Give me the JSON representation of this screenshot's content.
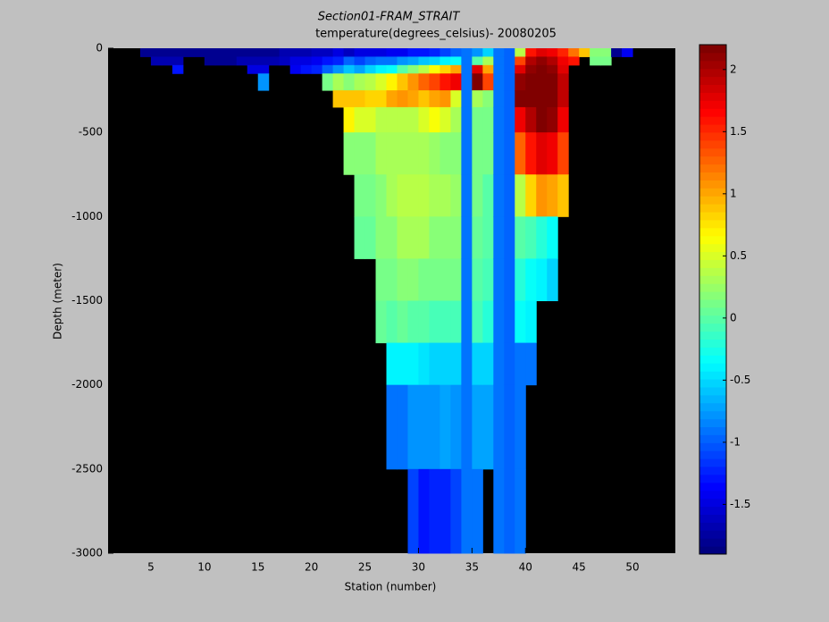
{
  "chart_data": {
    "type": "heatmap",
    "title": "Section01-FRAM_STRAIT",
    "subtitle": "temperature(degrees_celsius)- 20080205",
    "x_label": "Station (number)",
    "y_label": "Depth (meter)",
    "x": [
      5,
      6,
      7,
      8,
      9,
      10,
      11,
      12,
      13,
      14,
      15,
      16,
      17,
      18,
      19,
      20,
      21,
      22,
      23,
      24,
      25,
      26,
      27,
      28,
      29,
      30,
      31,
      32,
      33,
      34,
      35,
      36,
      37,
      38,
      39,
      40,
      41,
      42,
      43,
      44,
      45,
      46,
      47,
      48,
      49,
      50
    ],
    "depth_edges": [
      0,
      -50,
      -100,
      -150,
      -250,
      -350,
      -500,
      -750,
      -1000,
      -1250,
      -1500,
      -1750,
      -2000,
      -2500,
      -3000
    ],
    "values": [
      [
        -1.8,
        null,
        null,
        null,
        null,
        null,
        null,
        null,
        null,
        null,
        null,
        null,
        null,
        null
      ],
      [
        -1.8,
        -1.7,
        null,
        null,
        null,
        null,
        null,
        null,
        null,
        null,
        null,
        null,
        null,
        null
      ],
      [
        -1.8,
        -1.7,
        null,
        null,
        null,
        null,
        null,
        null,
        null,
        null,
        null,
        null,
        null,
        null
      ],
      [
        -1.8,
        -1.7,
        -1.3,
        null,
        null,
        null,
        null,
        null,
        null,
        null,
        null,
        null,
        null,
        null
      ],
      [
        -1.8,
        null,
        null,
        null,
        null,
        null,
        null,
        null,
        null,
        null,
        null,
        null,
        null,
        null
      ],
      [
        -1.8,
        null,
        null,
        null,
        null,
        null,
        null,
        null,
        null,
        null,
        null,
        null,
        null,
        null
      ],
      [
        -1.8,
        -1.8,
        null,
        null,
        null,
        null,
        null,
        null,
        null,
        null,
        null,
        null,
        null,
        null
      ],
      [
        -1.8,
        -1.8,
        null,
        null,
        null,
        null,
        null,
        null,
        null,
        null,
        null,
        null,
        null,
        null
      ],
      [
        -1.8,
        -1.8,
        null,
        null,
        null,
        null,
        null,
        null,
        null,
        null,
        null,
        null,
        null,
        null
      ],
      [
        -1.8,
        -1.7,
        null,
        null,
        null,
        null,
        null,
        null,
        null,
        null,
        null,
        null,
        null,
        null
      ],
      [
        -1.8,
        -1.7,
        -1.5,
        null,
        null,
        null,
        null,
        null,
        null,
        null,
        null,
        null,
        null,
        null
      ],
      [
        -1.8,
        -1.7,
        -1.5,
        -0.8,
        null,
        null,
        null,
        null,
        null,
        null,
        null,
        null,
        null,
        null
      ],
      [
        -1.8,
        -1.7,
        null,
        null,
        null,
        null,
        null,
        null,
        null,
        null,
        null,
        null,
        null,
        null
      ],
      [
        -1.7,
        -1.6,
        null,
        null,
        null,
        null,
        null,
        null,
        null,
        null,
        null,
        null,
        null,
        null
      ],
      [
        -1.7,
        -1.5,
        -1.4,
        null,
        null,
        null,
        null,
        null,
        null,
        null,
        null,
        null,
        null,
        null
      ],
      [
        -1.7,
        -1.5,
        -1.3,
        null,
        null,
        null,
        null,
        null,
        null,
        null,
        null,
        null,
        null,
        null
      ],
      [
        -1.6,
        -1.4,
        -1.2,
        null,
        null,
        null,
        null,
        null,
        null,
        null,
        null,
        null,
        null,
        null
      ],
      [
        -1.6,
        -1.3,
        -1.0,
        0.1,
        null,
        null,
        null,
        null,
        null,
        null,
        null,
        null,
        null,
        null
      ],
      [
        -1.5,
        -1.2,
        -0.8,
        0.3,
        0.9,
        null,
        null,
        null,
        null,
        null,
        null,
        null,
        null,
        null
      ],
      [
        -1.6,
        -1.0,
        -0.6,
        0.2,
        0.9,
        0.7,
        0.15,
        null,
        null,
        null,
        null,
        null,
        null,
        null
      ],
      [
        -1.5,
        -1.1,
        -0.7,
        0.3,
        0.9,
        0.5,
        0.15,
        0.1,
        0.05,
        null,
        null,
        null,
        null,
        null
      ],
      [
        -1.5,
        -1.0,
        -0.5,
        0.4,
        0.8,
        0.5,
        0.2,
        0.1,
        0.05,
        null,
        null,
        null,
        null,
        null
      ],
      [
        -1.5,
        -0.9,
        -0.4,
        0.5,
        0.8,
        0.4,
        0.3,
        0.2,
        0.15,
        0.1,
        0.05,
        null,
        null,
        null
      ],
      [
        -1.4,
        -0.9,
        -0.3,
        0.7,
        1.0,
        0.4,
        0.3,
        0.3,
        0.2,
        0.1,
        0.0,
        -0.4,
        -0.9,
        null
      ],
      [
        -1.4,
        -0.8,
        0.0,
        0.9,
        1.1,
        0.4,
        0.3,
        0.35,
        0.3,
        0.2,
        0.05,
        -0.4,
        -0.9,
        null
      ],
      [
        -1.3,
        -0.7,
        0.2,
        1.1,
        1.0,
        0.4,
        0.3,
        0.4,
        0.3,
        0.2,
        0.0,
        -0.4,
        -0.8,
        -1.1
      ],
      [
        -1.3,
        -0.6,
        0.4,
        1.3,
        0.9,
        0.5,
        0.3,
        0.4,
        0.3,
        0.1,
        0.0,
        -0.45,
        -0.8,
        -1.3
      ],
      [
        -1.2,
        -0.5,
        0.6,
        1.4,
        1.0,
        0.6,
        0.25,
        0.3,
        0.2,
        0.1,
        -0.05,
        -0.5,
        -0.8,
        -1.2
      ],
      [
        -1.1,
        -0.4,
        0.8,
        1.6,
        1.1,
        0.5,
        0.2,
        0.3,
        0.2,
        0.1,
        -0.1,
        -0.5,
        -0.7,
        -1.2
      ],
      [
        -1.0,
        -0.3,
        1.0,
        1.7,
        0.5,
        0.3,
        0.2,
        0.25,
        0.2,
        0.1,
        -0.1,
        -0.5,
        -0.8,
        -1.1
      ],
      [
        -0.9,
        -0.9,
        -0.9,
        -0.9,
        -0.9,
        -0.9,
        -0.9,
        -0.9,
        -0.9,
        -0.9,
        -0.9,
        -0.9,
        -0.9,
        -0.9
      ],
      [
        -0.8,
        0.0,
        1.8,
        2.2,
        0.3,
        0.1,
        0.1,
        0.1,
        0.05,
        0.0,
        -0.1,
        -0.5,
        -0.7,
        -0.9
      ],
      [
        -0.5,
        0.3,
        1.0,
        1.4,
        0.2,
        0.1,
        0.1,
        0.0,
        0.0,
        -0.05,
        -0.2,
        -0.5,
        -0.7,
        null
      ],
      [
        -0.9,
        -0.9,
        -0.9,
        -0.9,
        -0.9,
        -0.9,
        -0.9,
        -0.9,
        -0.9,
        -0.9,
        -0.9,
        -0.9,
        -0.9,
        -0.9
      ],
      [
        -0.95,
        -0.95,
        -0.95,
        -0.95,
        -0.95,
        -0.95,
        -0.95,
        -0.95,
        -0.95,
        -0.95,
        -0.95,
        -0.95,
        -0.95,
        -0.95
      ],
      [
        0.4,
        1.4,
        1.8,
        2.1,
        2.2,
        1.7,
        1.3,
        0.4,
        0.0,
        -0.2,
        -0.3,
        -0.9,
        -0.9,
        -0.9
      ],
      [
        1.6,
        2.0,
        2.1,
        2.2,
        2.2,
        2.0,
        1.6,
        0.8,
        -0.1,
        -0.3,
        -0.4,
        -0.9,
        null,
        null
      ],
      [
        1.8,
        2.1,
        2.2,
        2.2,
        2.2,
        2.2,
        1.8,
        1.1,
        -0.2,
        -0.4,
        null,
        null,
        null,
        null
      ],
      [
        1.7,
        2.0,
        2.1,
        2.2,
        2.2,
        2.1,
        1.7,
        1.0,
        -0.3,
        -0.5,
        null,
        null,
        null,
        null
      ],
      [
        1.5,
        1.7,
        1.8,
        1.9,
        1.9,
        1.7,
        1.4,
        0.9,
        null,
        null,
        null,
        null,
        null,
        null
      ],
      [
        1.2,
        1.6,
        null,
        null,
        null,
        null,
        null,
        null,
        null,
        null,
        null,
        null,
        null,
        null
      ],
      [
        0.9,
        null,
        null,
        null,
        null,
        null,
        null,
        null,
        null,
        null,
        null,
        null,
        null,
        null
      ],
      [
        0.2,
        0.1,
        null,
        null,
        null,
        null,
        null,
        null,
        null,
        null,
        null,
        null,
        null,
        null
      ],
      [
        0.15,
        0.1,
        null,
        null,
        null,
        null,
        null,
        null,
        null,
        null,
        null,
        null,
        null,
        null
      ],
      [
        -1.8,
        null,
        null,
        null,
        null,
        null,
        null,
        null,
        null,
        null,
        null,
        null,
        null,
        null
      ],
      [
        -1.4,
        null,
        null,
        null,
        null,
        null,
        null,
        null,
        null,
        null,
        null,
        null,
        null,
        null
      ]
    ],
    "xlim": [
      1,
      54
    ],
    "xticks": [
      5,
      10,
      15,
      20,
      25,
      30,
      35,
      40,
      45,
      50
    ],
    "ylim": [
      -3000,
      0
    ],
    "yticks": [
      -3000,
      -2500,
      -2000,
      -1500,
      -1000,
      -500,
      0
    ],
    "colormap": "jet",
    "clim": [
      -1.9,
      2.2
    ],
    "cticks": [
      -1.5,
      -1,
      -0.5,
      0,
      0.5,
      1,
      1.5,
      2
    ]
  }
}
